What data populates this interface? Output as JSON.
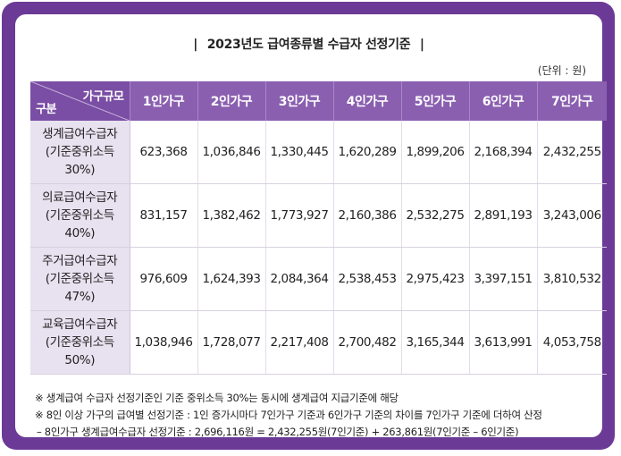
{
  "title": "2023년도 급여종류별 수급자 선정기준",
  "title_bar_left": "|",
  "title_bar_right": "|",
  "unit": "(단위 : 원)",
  "table": {
    "corner_top_right": "가구규모",
    "corner_bottom_left": "구분",
    "columns": [
      "1인가구",
      "2인가구",
      "3인가구",
      "4인가구",
      "5인가구",
      "6인가구",
      "7인가구"
    ],
    "rows": [
      {
        "label": [
          "생계급여수급자",
          "(기준중위소득",
          "30%)"
        ],
        "values": [
          "623,368",
          "1,036,846",
          "1,330,445",
          "1,620,289",
          "1,899,206",
          "2,168,394",
          "2,432,255"
        ]
      },
      {
        "label": [
          "의료급여수급자",
          "(기준중위소득",
          "40%)"
        ],
        "values": [
          "831,157",
          "1,382,462",
          "1,773,927",
          "2,160,386",
          "2,532,275",
          "2,891,193",
          "3,243,006"
        ]
      },
      {
        "label": [
          "주거급여수급자",
          "(기준중위소득",
          "47%)"
        ],
        "values": [
          "976,609",
          "1,624,393",
          "2,084,364",
          "2,538,453",
          "2,975,423",
          "3,397,151",
          "3,810,532"
        ]
      },
      {
        "label": [
          "교육급여수급자",
          "(기준중위소득",
          "50%)"
        ],
        "values": [
          "1,038,946",
          "1,728,077",
          "2,217,408",
          "2,700,482",
          "3,165,344",
          "3,613,991",
          "4,053,758"
        ]
      }
    ]
  },
  "notes": [
    "※ 생계급여 수급자 선정기준인 기준 중위소득 30%는 동시에 생계급여 지급기준에 해당",
    "※ 8인 이상 가구의 급여별 선정기준 : 1인 증가시마다 7인가구 기준과 6인가구 기준의 차이를 7인가구 기준에 더하여 산정",
    "– 8인가구 생계급여수급자 선정기준 : 2,696,116원 = 2,432,255원(7인기준) + 263,861원(7인기준 – 6인기준)"
  ],
  "colors": {
    "frame": "#6b3a96",
    "header": "#8a5fb0",
    "label_bg": "#e8e1ef"
  }
}
